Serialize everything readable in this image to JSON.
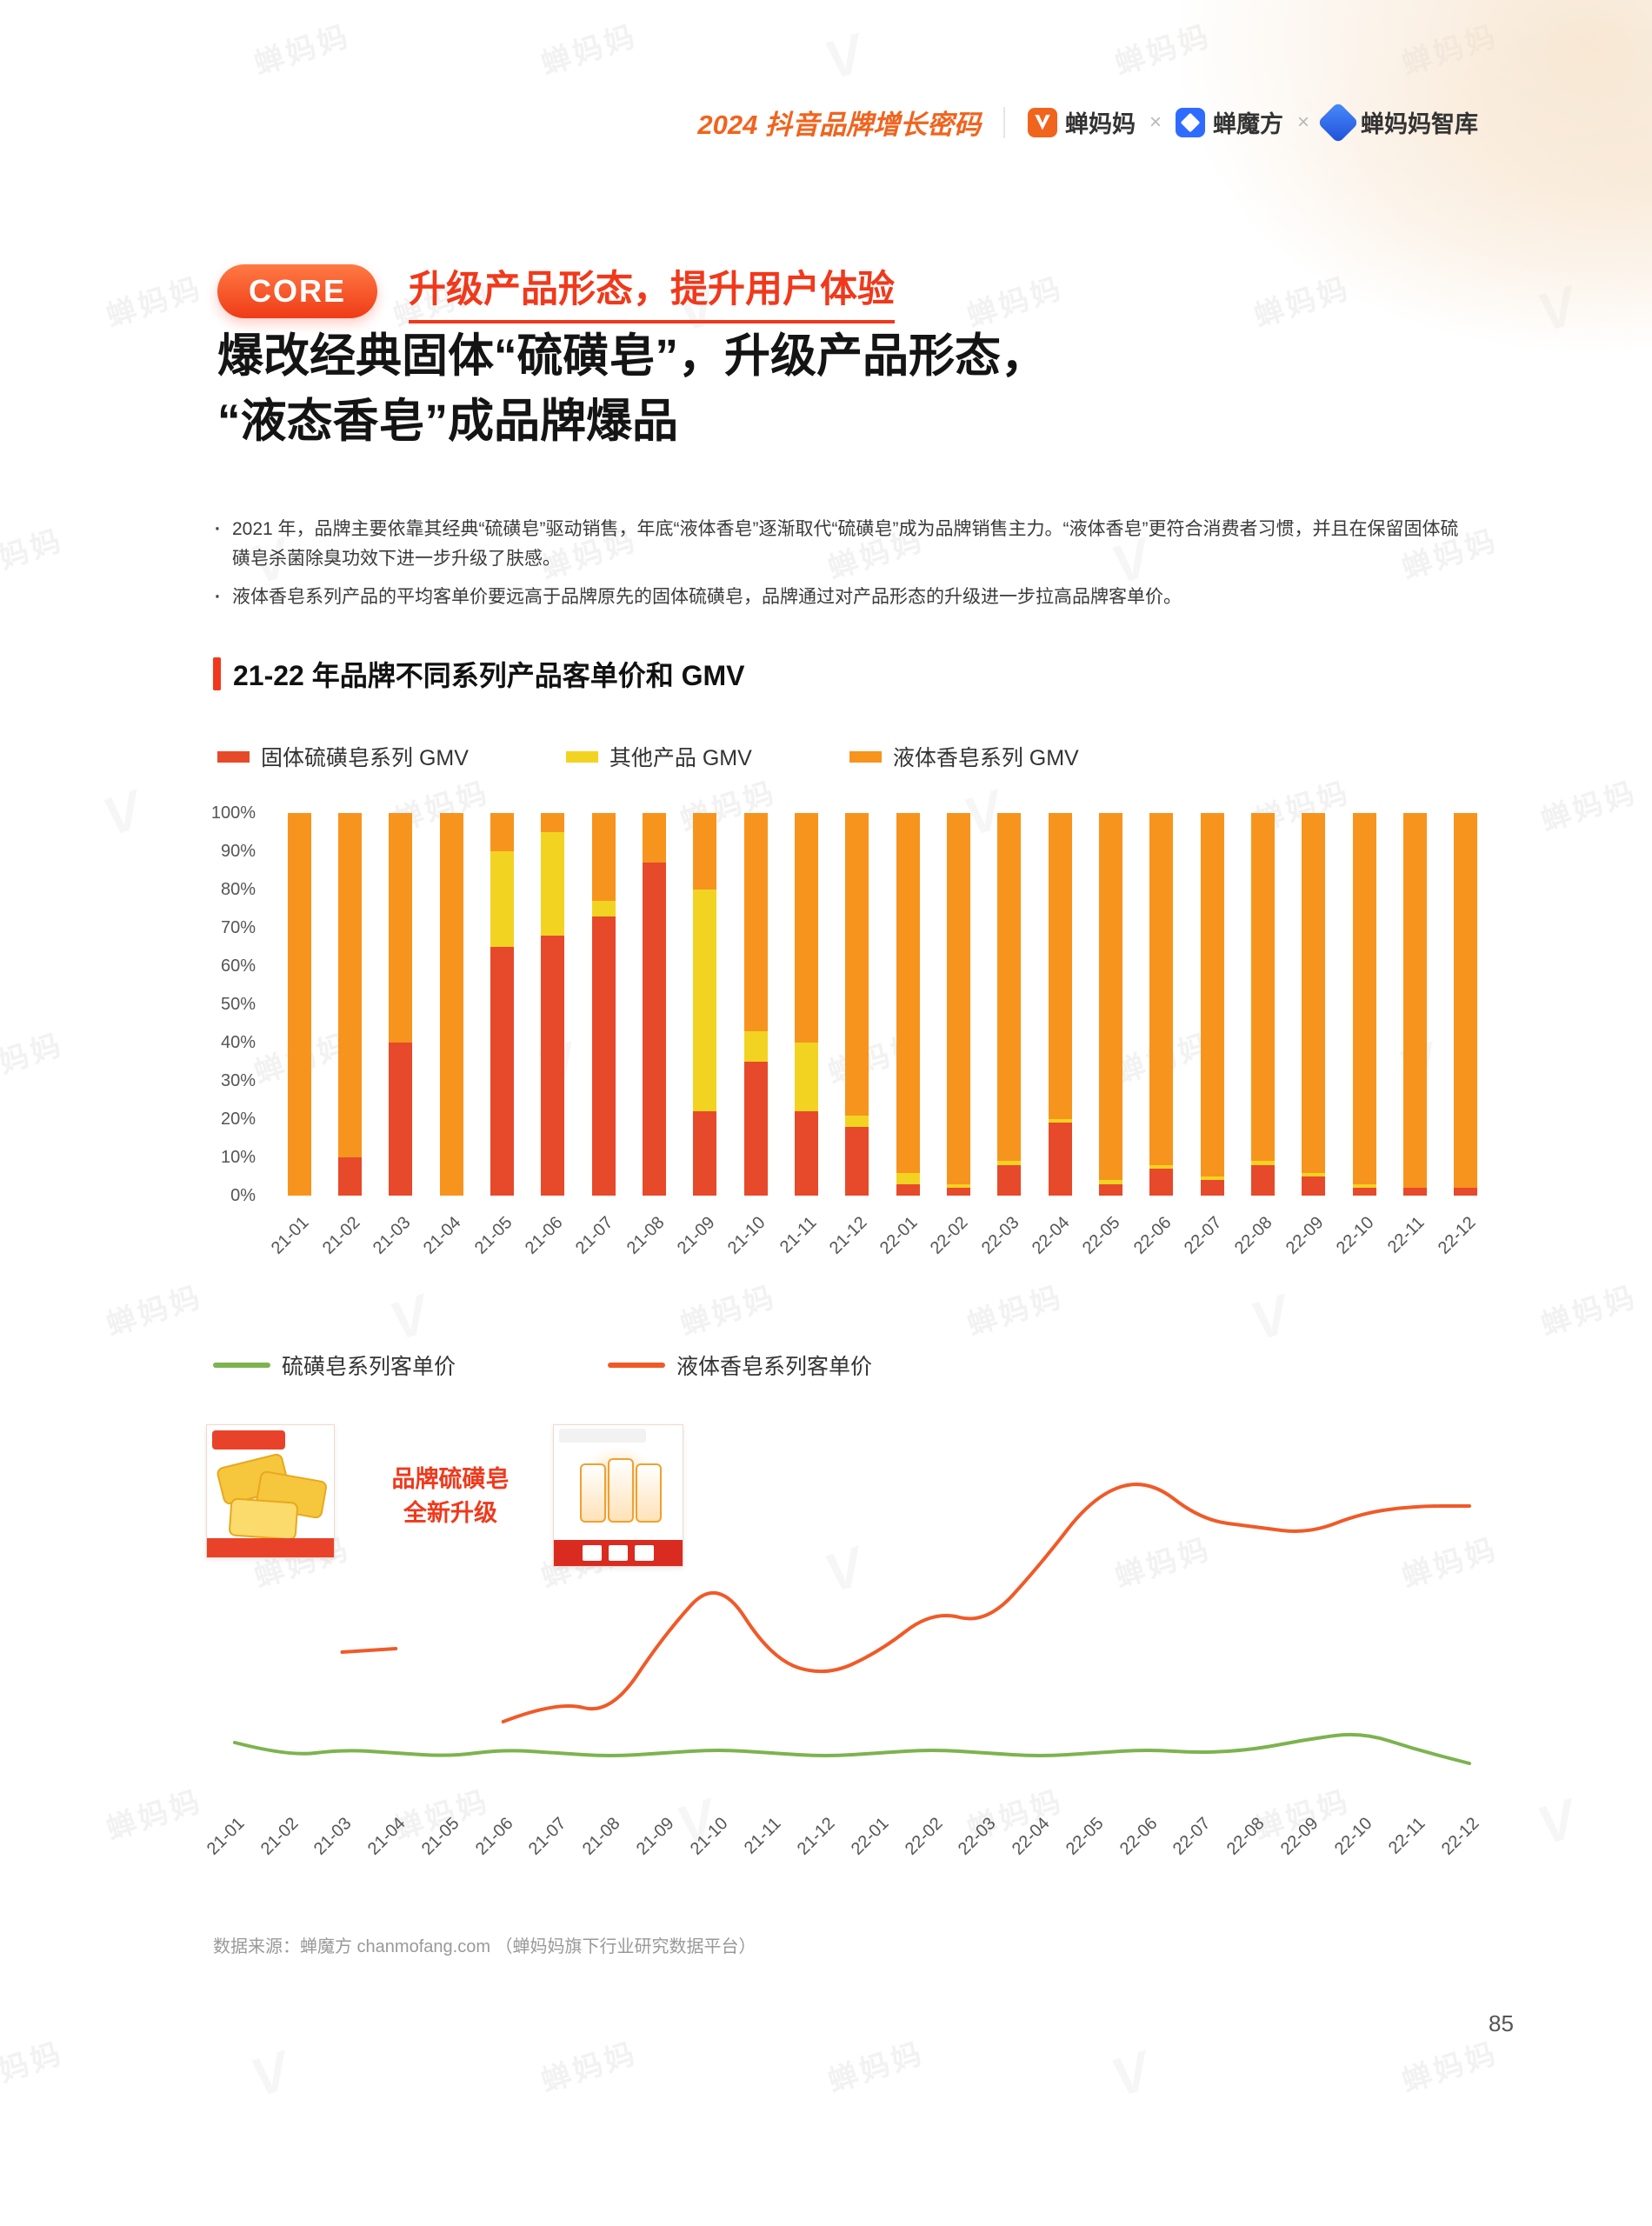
{
  "header": {
    "report_title": "2024 抖音品牌增长密码",
    "separator": "×",
    "brands": [
      {
        "name": "蝉妈妈"
      },
      {
        "name": "蝉魔方"
      },
      {
        "name": "蝉妈妈智库"
      }
    ]
  },
  "core": {
    "badge": "CORE",
    "subtitle": "升级产品形态，提升用户体验",
    "heading_line1": "爆改经典固体“硫磺皂”，升级产品形态，",
    "heading_line2": "“液态香皂”成品牌爆品"
  },
  "bullets": [
    "2021 年，品牌主要依靠其经典“硫磺皂”驱动销售，年底“液体香皂”逐渐取代“硫磺皂”成为品牌销售主力。“液体香皂”更符合消费者习惯，并且在保留固体硫磺皂杀菌除臭功效下进一步升级了肤感。",
    "液体香皂系列产品的平均客单价要远高于品牌原先的固体硫磺皂，品牌通过对产品形态的升级进一步拉高品牌客单价。"
  ],
  "section_title": "21-22 年品牌不同系列产品客单价和 GMV",
  "annotation": {
    "line1": "品牌硫磺皂",
    "line2": "全新升级"
  },
  "footer": {
    "source": "数据来源：蝉魔方 chanmofang.com （蝉妈妈旗下行业研究数据平台）",
    "page_number": "85"
  },
  "colors": {
    "accent": "#f0391c",
    "bar_red": "#e64a2b",
    "bar_yellow": "#f3d321",
    "bar_orange": "#f7941e",
    "line_green": "#7cb34f",
    "line_orange": "#f05a28"
  },
  "chart_data": [
    {
      "type": "bar",
      "stacked": true,
      "title": "21-22 年品牌不同系列产品客单价和 GMV",
      "unit": "%",
      "ylim": [
        0,
        100
      ],
      "yticks": [
        "100%",
        "90%",
        "80%",
        "70%",
        "60%",
        "50%",
        "40%",
        "30%",
        "20%",
        "10%",
        "0%"
      ],
      "grid": false,
      "legend_position": "top",
      "categories": [
        "21-01",
        "21-02",
        "21-03",
        "21-04",
        "21-05",
        "21-06",
        "21-07",
        "21-08",
        "21-09",
        "21-10",
        "21-11",
        "21-12",
        "22-01",
        "22-02",
        "22-03",
        "22-04",
        "22-05",
        "22-06",
        "22-07",
        "22-08",
        "22-09",
        "22-10",
        "22-11",
        "22-12"
      ],
      "series": [
        {
          "name": "固体硫磺皂系列 GMV",
          "color": "#e64a2b",
          "values": [
            0,
            10,
            40,
            0,
            65,
            68,
            73,
            87,
            22,
            35,
            22,
            18,
            3,
            2,
            8,
            19,
            3,
            7,
            4,
            8,
            5,
            2,
            2,
            2
          ]
        },
        {
          "name": "其他产品 GMV",
          "color": "#f3d321",
          "values": [
            0,
            0,
            0,
            0,
            25,
            27,
            4,
            0,
            58,
            8,
            18,
            3,
            3,
            1,
            1,
            1,
            1,
            1,
            1,
            1,
            1,
            1,
            0,
            0
          ]
        },
        {
          "name": "液体香皂系列 GMV",
          "color": "#f7941e",
          "values": [
            100,
            90,
            60,
            100,
            10,
            5,
            23,
            13,
            20,
            57,
            60,
            79,
            94,
            97,
            91,
            80,
            96,
            92,
            95,
            91,
            94,
            97,
            98,
            98
          ]
        }
      ]
    },
    {
      "type": "line",
      "y_axis_visible": false,
      "value_scale": "relative 0-100, estimated from figure (no axis labels shown)",
      "legend_position": "top",
      "x": [
        "21-01",
        "21-02",
        "21-03",
        "21-04",
        "21-05",
        "21-06",
        "21-07",
        "21-08",
        "21-09",
        "21-10",
        "21-11",
        "21-12",
        "22-01",
        "22-02",
        "22-03",
        "22-04",
        "22-05",
        "22-06",
        "22-07",
        "22-08",
        "22-09",
        "22-10",
        "22-11",
        "22-12"
      ],
      "series": [
        {
          "name": "硫磺皂系列客单价",
          "color": "#7cb34f",
          "values": [
            14,
            10,
            12,
            11,
            10,
            12,
            11,
            10,
            11,
            12,
            11,
            10,
            11,
            12,
            11,
            10,
            11,
            12,
            11,
            12,
            15,
            17,
            12,
            8
          ]
        },
        {
          "name": "液体香皂系列客单价",
          "color": "#f05a28",
          "values": [
            null,
            null,
            40,
            41,
            null,
            20,
            26,
            22,
            45,
            62,
            38,
            33,
            40,
            52,
            48,
            65,
            85,
            90,
            78,
            76,
            74,
            80,
            82,
            82
          ]
        }
      ]
    }
  ]
}
